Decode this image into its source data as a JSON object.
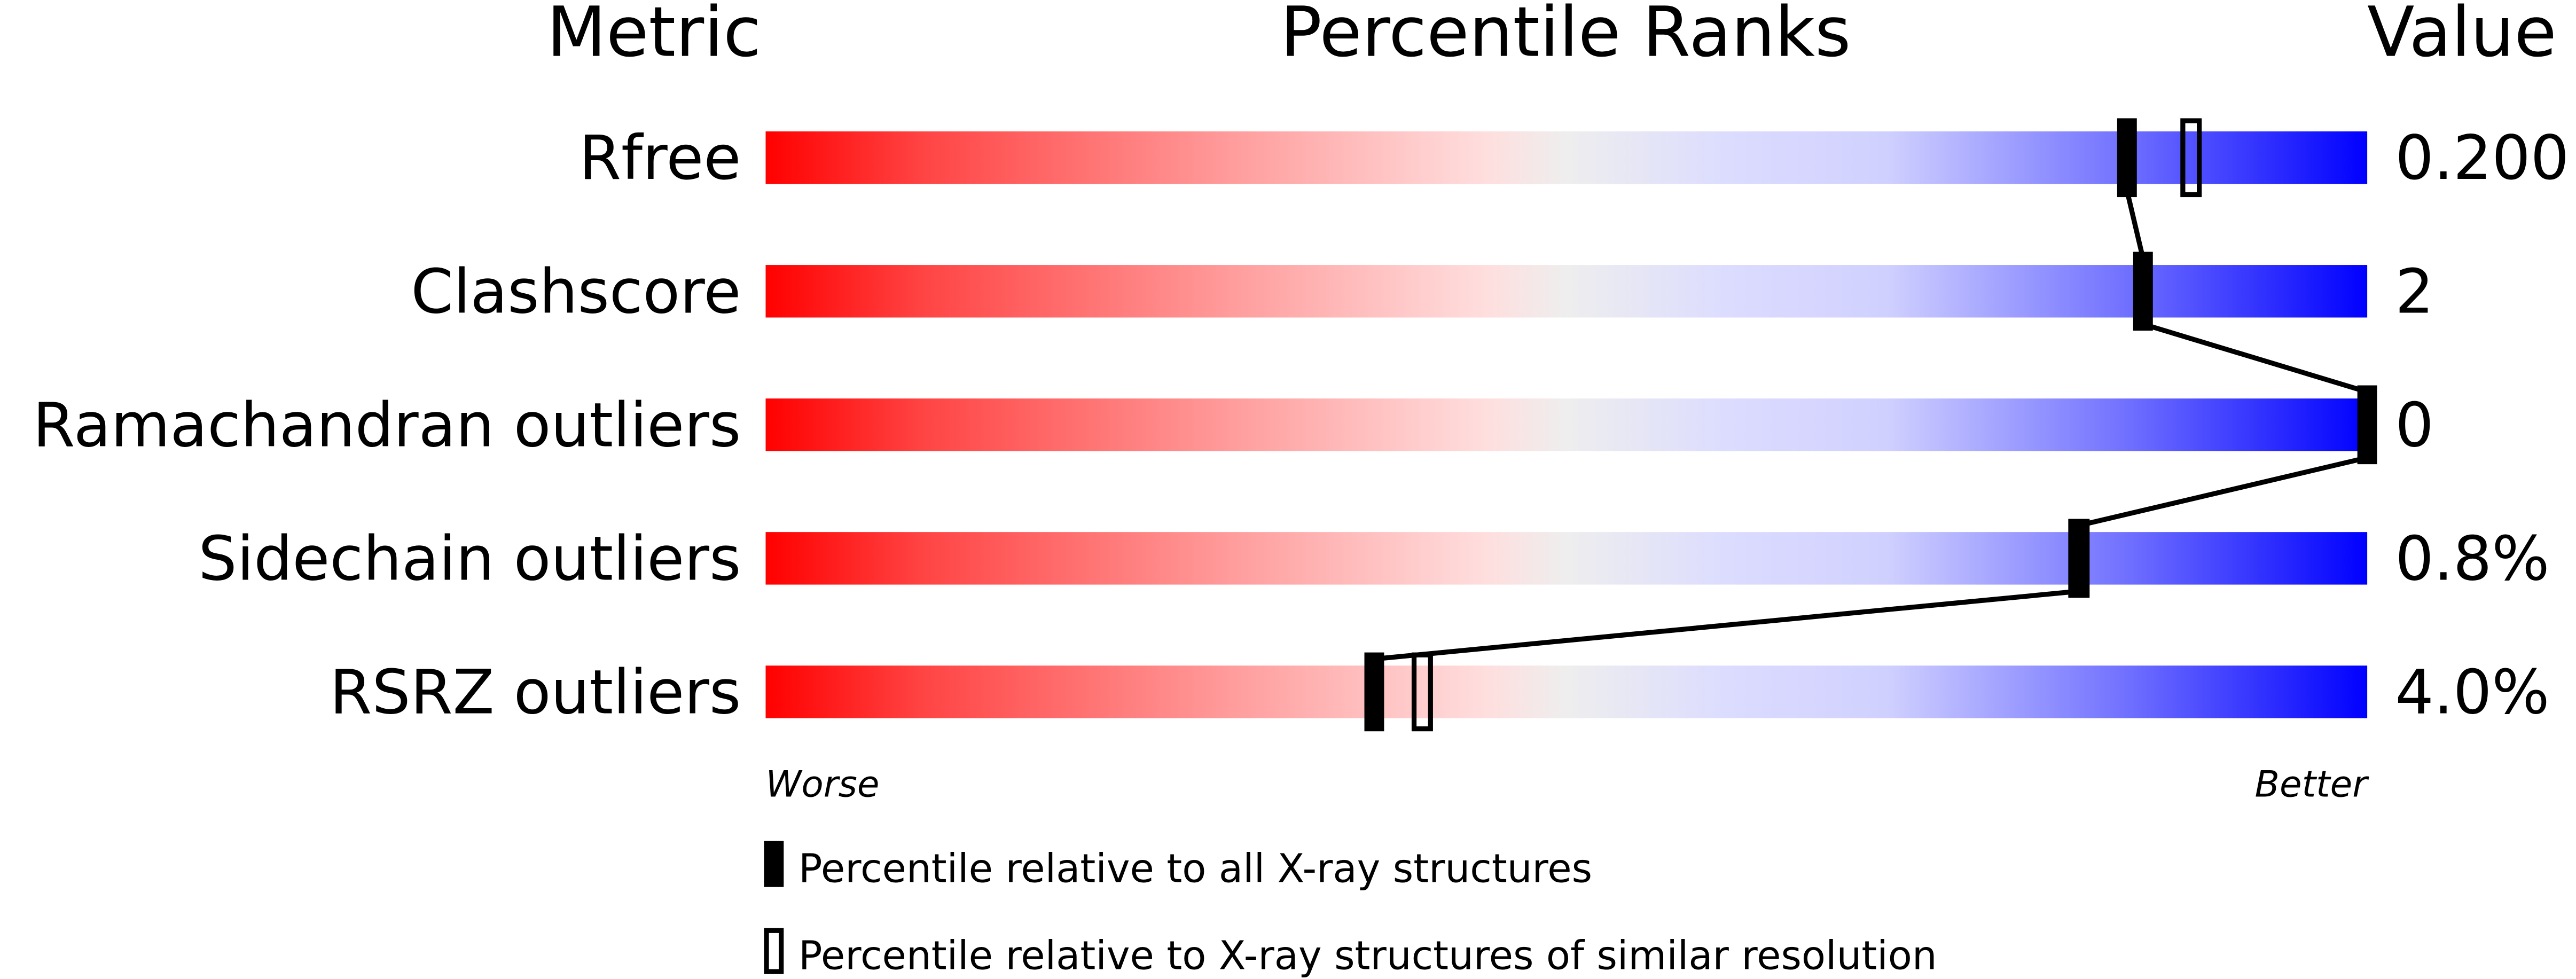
{
  "chart_data": {
    "type": "percentile-bar",
    "headers": {
      "metric": "Metric",
      "ranks": "Percentile Ranks",
      "value": "Value"
    },
    "xlim": [
      0,
      100
    ],
    "axis_ends": {
      "left": "Worse",
      "right": "Better"
    },
    "gradient_colors": {
      "worse": "#ff0000",
      "middle": "#eeeeee",
      "better": "#0000ff"
    },
    "rows": [
      {
        "metric": "Rfree",
        "value": "0.200",
        "percentile_all": 85,
        "percentile_similar": 89
      },
      {
        "metric": "Clashscore",
        "value": "2",
        "percentile_all": 86,
        "percentile_similar": null
      },
      {
        "metric": "Ramachandran outliers",
        "value": "0",
        "percentile_all": 100,
        "percentile_similar": null
      },
      {
        "metric": "Sidechain outliers",
        "value": "0.8%",
        "percentile_all": 82,
        "percentile_similar": 82
      },
      {
        "metric": "RSRZ outliers",
        "value": "4.0%",
        "percentile_all": 38,
        "percentile_similar": 41
      }
    ],
    "legend": [
      {
        "marker": "filled",
        "label": "Percentile relative to all X-ray structures"
      },
      {
        "marker": "open",
        "label": "Percentile relative to X-ray structures of similar resolution"
      }
    ]
  }
}
